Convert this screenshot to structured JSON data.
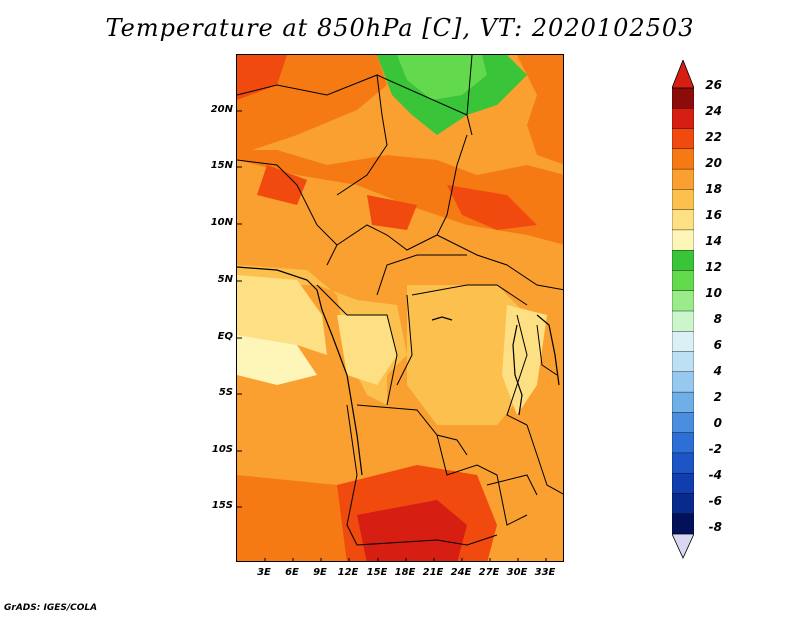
{
  "title": "Temperature at 850hPa [C], VT: 2020102503",
  "credit": "GrADS: IGES/COLA",
  "map": {
    "lat_labels": [
      "20N",
      "15N",
      "10N",
      "5N",
      "EQ",
      "5S",
      "10S",
      "15S"
    ],
    "lon_labels": [
      "3E",
      "6E",
      "9E",
      "12E",
      "15E",
      "18E",
      "21E",
      "24E",
      "27E",
      "30E",
      "33E"
    ]
  },
  "colorbar": {
    "labels": [
      "26",
      "24",
      "22",
      "20",
      "18",
      "16",
      "14",
      "12",
      "10",
      "8",
      "6",
      "4",
      "2",
      "0",
      "-2",
      "-4",
      "-6",
      "-8"
    ],
    "colors": [
      "#8c0b0b",
      "#d61e12",
      "#f04a0e",
      "#f67a14",
      "#f9a030",
      "#fbc04e",
      "#fde083",
      "#fef5b8",
      "#3ac43a",
      "#63d94d",
      "#9aeb8a",
      "#ccf5cc",
      "#daf0f6",
      "#bde0f5",
      "#97c9f0",
      "#6faee7",
      "#4b8ee0",
      "#2e6fd6",
      "#1d55c6",
      "#103eae",
      "#082a8c",
      "#03115a"
    ],
    "top_arrow_color": "#d61e12",
    "bottom_arrow_color": "#d8d8f4"
  }
}
